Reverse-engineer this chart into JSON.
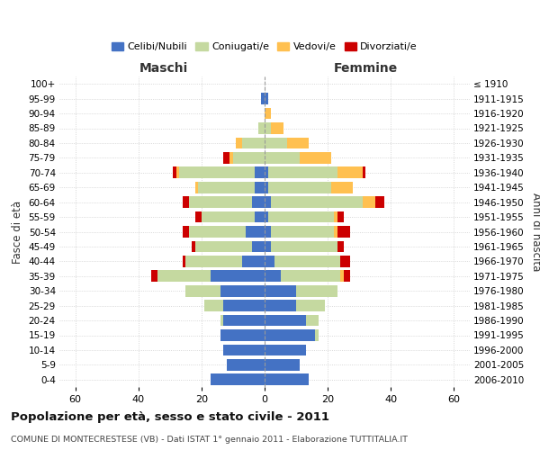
{
  "age_groups": [
    "0-4",
    "5-9",
    "10-14",
    "15-19",
    "20-24",
    "25-29",
    "30-34",
    "35-39",
    "40-44",
    "45-49",
    "50-54",
    "55-59",
    "60-64",
    "65-69",
    "70-74",
    "75-79",
    "80-84",
    "85-89",
    "90-94",
    "95-99",
    "100+"
  ],
  "birth_years": [
    "2006-2010",
    "2001-2005",
    "1996-2000",
    "1991-1995",
    "1986-1990",
    "1981-1985",
    "1976-1980",
    "1971-1975",
    "1966-1970",
    "1961-1965",
    "1956-1960",
    "1951-1955",
    "1946-1950",
    "1941-1945",
    "1936-1940",
    "1931-1935",
    "1926-1930",
    "1921-1925",
    "1916-1920",
    "1911-1915",
    "≤ 1910"
  ],
  "colors": {
    "celibi": "#4472c4",
    "coniugati": "#c5d9a0",
    "vedovi": "#ffc050",
    "divorziati": "#cc0000"
  },
  "maschi": {
    "celibi": [
      17,
      12,
      13,
      14,
      13,
      13,
      14,
      17,
      7,
      4,
      6,
      3,
      4,
      3,
      3,
      0,
      0,
      0,
      0,
      1,
      0
    ],
    "coniugati": [
      0,
      0,
      0,
      0,
      1,
      6,
      11,
      17,
      18,
      18,
      18,
      17,
      20,
      18,
      24,
      10,
      7,
      2,
      0,
      0,
      0
    ],
    "vedovi": [
      0,
      0,
      0,
      0,
      0,
      0,
      0,
      0,
      0,
      0,
      0,
      0,
      0,
      1,
      1,
      1,
      2,
      0,
      0,
      0,
      0
    ],
    "divorziati": [
      0,
      0,
      0,
      0,
      0,
      0,
      0,
      2,
      1,
      1,
      2,
      2,
      2,
      0,
      1,
      2,
      0,
      0,
      0,
      0,
      0
    ]
  },
  "femmine": {
    "nubili": [
      14,
      11,
      13,
      16,
      13,
      10,
      10,
      5,
      3,
      2,
      2,
      1,
      2,
      1,
      1,
      0,
      0,
      0,
      0,
      1,
      0
    ],
    "coniugate": [
      0,
      0,
      0,
      1,
      4,
      9,
      13,
      19,
      21,
      21,
      20,
      21,
      29,
      20,
      22,
      11,
      7,
      2,
      0,
      0,
      0
    ],
    "vedove": [
      0,
      0,
      0,
      0,
      0,
      0,
      0,
      1,
      0,
      0,
      1,
      1,
      4,
      7,
      8,
      10,
      7,
      4,
      2,
      0,
      0
    ],
    "divorziate": [
      0,
      0,
      0,
      0,
      0,
      0,
      0,
      2,
      3,
      2,
      4,
      2,
      3,
      0,
      1,
      0,
      0,
      0,
      0,
      0,
      0
    ]
  },
  "xlim": 65,
  "xtick_step": 20,
  "title": "Popolazione per età, sesso e stato civile - 2011",
  "subtitle": "COMUNE DI MONTECRESTESE (VB) - Dati ISTAT 1° gennaio 2011 - Elaborazione TUTTITALIA.IT",
  "ylabel_left": "Fasce di età",
  "ylabel_right": "Anni di nascita",
  "legend_labels": [
    "Celibi/Nubili",
    "Coniugati/e",
    "Vedovi/e",
    "Divorziati/e"
  ],
  "maschi_label": "Maschi",
  "femmine_label": "Femmine"
}
